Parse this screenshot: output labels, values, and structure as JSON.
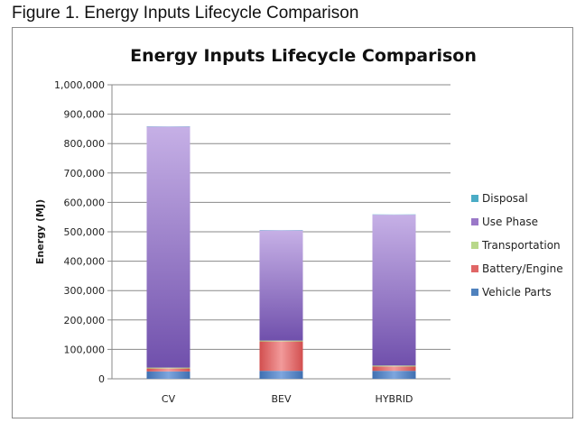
{
  "caption": "Figure 1. Energy Inputs Lifecycle Comparison",
  "chart_data": {
    "type": "bar",
    "stacked": true,
    "title": "Energy Inputs Lifecycle Comparison",
    "xlabel": "",
    "ylabel": "Energy (MJ)",
    "ylim": [
      0,
      1000000
    ],
    "yticks": [
      0,
      100000,
      200000,
      300000,
      400000,
      500000,
      600000,
      700000,
      800000,
      900000,
      1000000
    ],
    "ytick_labels": [
      "0",
      "100,000",
      "200,000",
      "300,000",
      "400,000",
      "500,000",
      "600,000",
      "700,000",
      "800,000",
      "900,000",
      "1,000,000"
    ],
    "grid": true,
    "legend_position": "right",
    "categories": [
      "CV",
      "BEV",
      "HYBRID"
    ],
    "series": [
      {
        "name": "Vehicle Parts",
        "color": "#4f81bd",
        "values": [
          25000,
          27000,
          27000
        ]
      },
      {
        "name": "Battery/Engine",
        "color": "#e06666",
        "values": [
          10000,
          100000,
          15000
        ]
      },
      {
        "name": "Transportation",
        "color": "#b8d88a",
        "values": [
          3000,
          3000,
          3000
        ]
      },
      {
        "name": "Use Phase",
        "color": "#9a78c8",
        "values": [
          820000,
          375000,
          513000
        ]
      },
      {
        "name": "Disposal",
        "color": "#4bacc6",
        "values": [
          1000,
          1000,
          1000
        ]
      }
    ]
  }
}
